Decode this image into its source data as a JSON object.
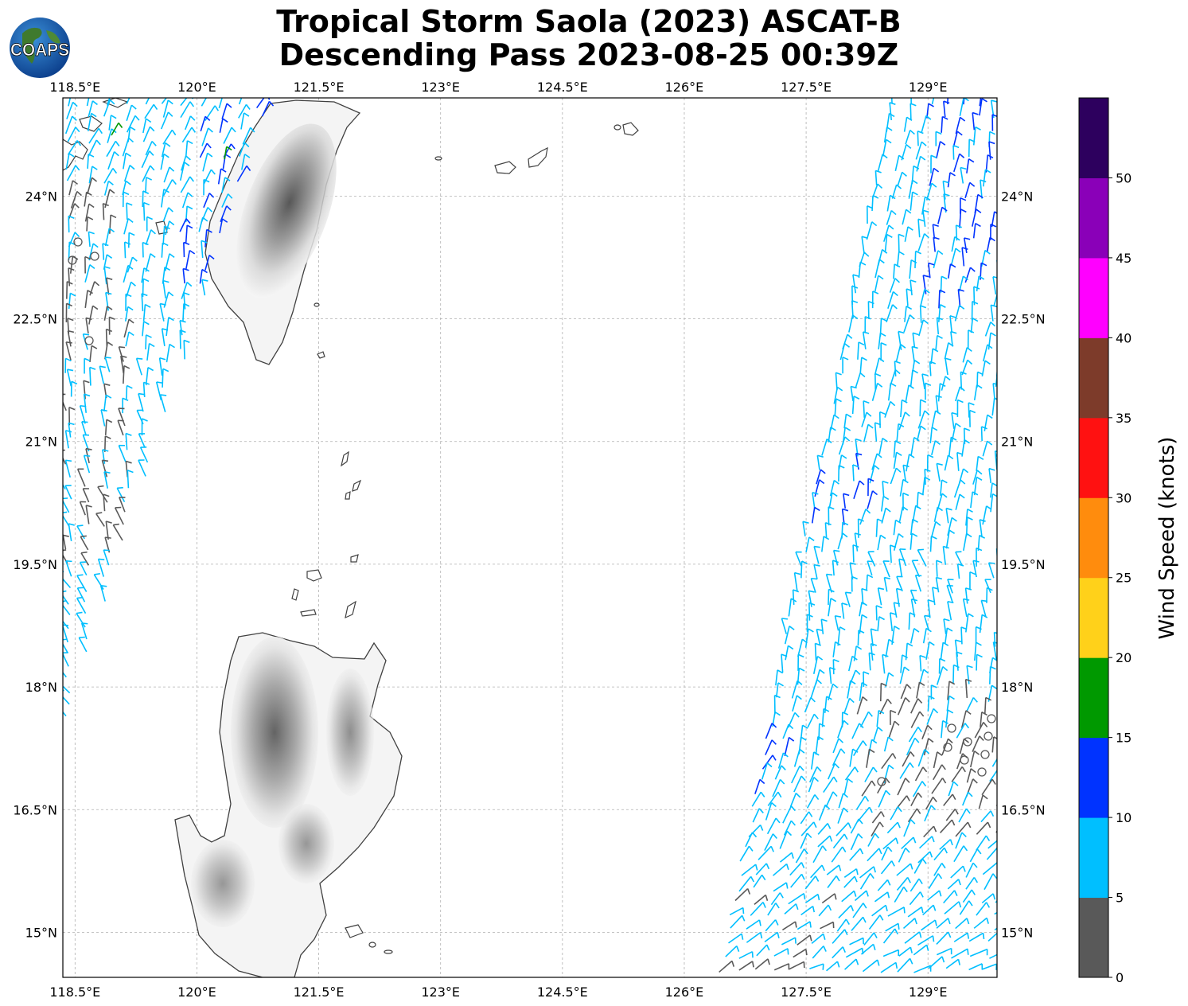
{
  "title": {
    "line1": "Tropical Storm Saola (2023) ASCAT-B",
    "line2": "Descending Pass 2023-08-25 00:39Z"
  },
  "logo": {
    "text": "COAPS",
    "icon": "globe-icon"
  },
  "map": {
    "lon_range": [
      118.35,
      129.85
    ],
    "lat_range": [
      14.45,
      25.2
    ],
    "lon_ticks": [
      "118.5°E",
      "120°E",
      "121.5°E",
      "123°E",
      "124.5°E",
      "126°E",
      "127.5°E",
      "129°E"
    ],
    "lat_ticks": [
      "24°N",
      "22.5°N",
      "21°N",
      "19.5°N",
      "18°N",
      "16.5°N",
      "15°N"
    ],
    "gridlines": true
  },
  "colorbar": {
    "label": "Wind Speed (knots)",
    "ticks": [
      "0",
      "5",
      "10",
      "15",
      "20",
      "25",
      "30",
      "35",
      "40",
      "45",
      "50"
    ],
    "colors": [
      "#595959",
      "#00bfff",
      "#0033ff",
      "#009900",
      "#ffd11a",
      "#ff8c0d",
      "#ff1111",
      "#7d3b2a",
      "#ff00ff",
      "#8a00b8",
      "#2d005e"
    ]
  }
}
